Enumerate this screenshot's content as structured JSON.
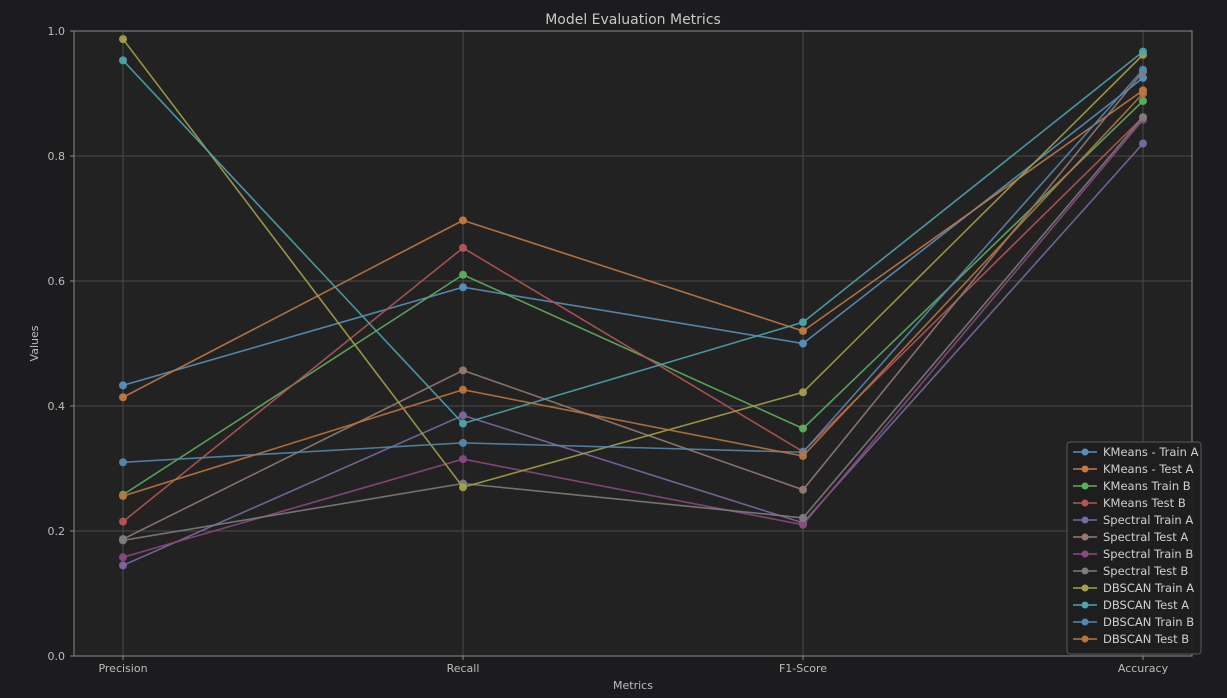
{
  "chart_data": {
    "type": "line",
    "title": "Model Evaluation Metrics",
    "xlabel": "Metrics",
    "ylabel": "Values",
    "categories": [
      "Precision",
      "Recall",
      "F1-Score",
      "Accuracy"
    ],
    "ylim": [
      0.0,
      1.0
    ],
    "yticks": [
      "0.0",
      "0.2",
      "0.4",
      "0.6",
      "0.8",
      "1.0"
    ],
    "grid": true,
    "legend_position": "lower-right",
    "series": [
      {
        "name": "KMeans - Train A",
        "color": "#5b8fb9",
        "values": [
          0.433,
          0.59,
          0.5,
          0.925
        ]
      },
      {
        "name": "KMeans - Test A",
        "color": "#c07a45",
        "values": [
          0.414,
          0.697,
          0.52,
          0.905
        ]
      },
      {
        "name": "KMeans Train B",
        "color": "#5fae5f",
        "values": [
          0.258,
          0.61,
          0.364,
          0.888
        ]
      },
      {
        "name": "KMeans Test B",
        "color": "#b55555",
        "values": [
          0.215,
          0.653,
          0.327,
          0.862
        ]
      },
      {
        "name": "Spectral Train A",
        "color": "#7a6a9e",
        "values": [
          0.145,
          0.385,
          0.213,
          0.82
        ]
      },
      {
        "name": "Spectral Test A",
        "color": "#957a72",
        "values": [
          0.187,
          0.457,
          0.266,
          0.935
        ]
      },
      {
        "name": "Spectral Train B",
        "color": "#8a4a7e",
        "values": [
          0.158,
          0.315,
          0.21,
          0.858
        ]
      },
      {
        "name": "Spectral Test B",
        "color": "#7d7d7d",
        "values": [
          0.185,
          0.276,
          0.221,
          0.862
        ]
      },
      {
        "name": "DBSCAN Train A",
        "color": "#a5a04a",
        "values": [
          0.987,
          0.27,
          0.422,
          0.962
        ]
      },
      {
        "name": "DBSCAN Test A",
        "color": "#4fa3ad",
        "values": [
          0.953,
          0.372,
          0.534,
          0.967
        ]
      },
      {
        "name": "DBSCAN Train B",
        "color": "#5887ad",
        "values": [
          0.31,
          0.341,
          0.326,
          0.938
        ]
      },
      {
        "name": "DBSCAN Test B",
        "color": "#b8763f",
        "values": [
          0.256,
          0.426,
          0.32,
          0.9
        ]
      }
    ]
  }
}
